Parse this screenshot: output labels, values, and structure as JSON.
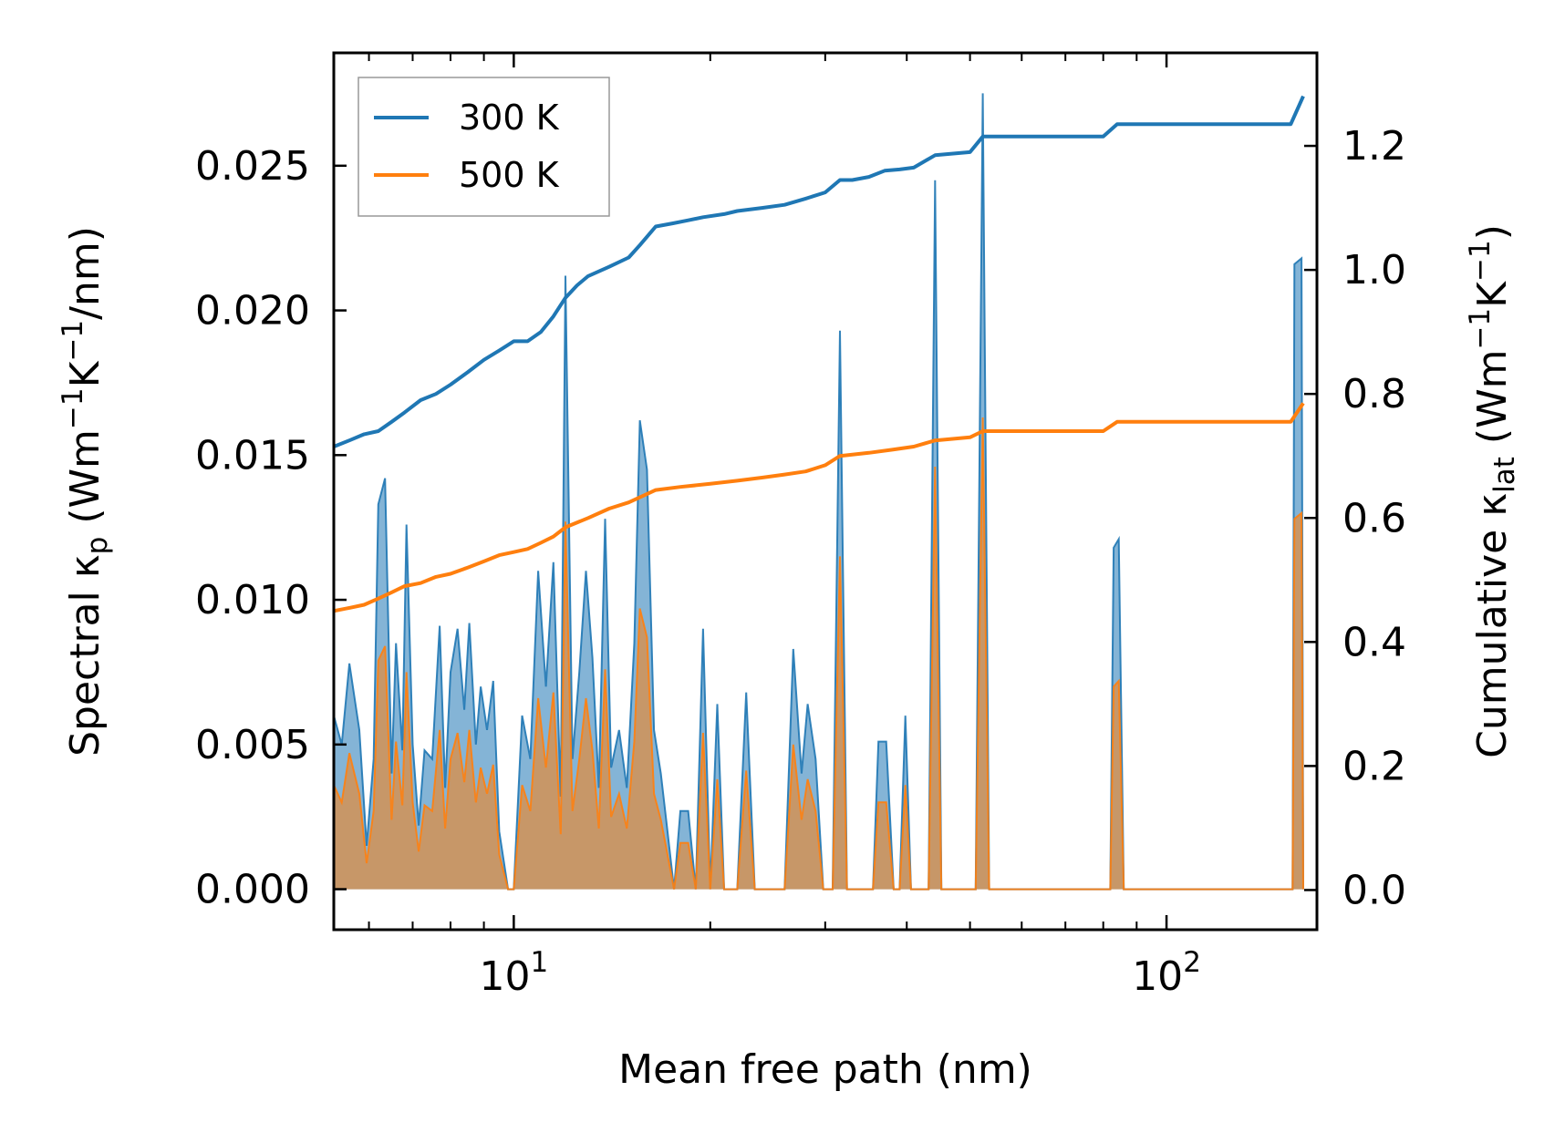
{
  "chart_data": {
    "type": "line",
    "x_scale": "log",
    "xlim": [
      5.3,
      170
    ],
    "xlabel": "Mean free path (nm)",
    "x_ticks": [
      {
        "value": 10,
        "base": "10",
        "exp": "1"
      },
      {
        "value": 100,
        "base": "10",
        "exp": "2"
      }
    ],
    "left_axis": {
      "label_main": "Spectral κ",
      "label_sub": "p",
      "label_unit_1": " (Wm",
      "label_unit_sup1": "−1",
      "label_unit_2": "K",
      "label_unit_sup2": "−1",
      "label_unit_3": "/nm)",
      "ylim": [
        -0.0014,
        0.0289
      ],
      "ticks": [
        {
          "value": 0.0,
          "label": "0.000"
        },
        {
          "value": 0.005,
          "label": "0.005"
        },
        {
          "value": 0.01,
          "label": "0.010"
        },
        {
          "value": 0.015,
          "label": "0.015"
        },
        {
          "value": 0.02,
          "label": "0.020"
        },
        {
          "value": 0.025,
          "label": "0.025"
        }
      ]
    },
    "right_axis": {
      "label_main": "Cumulative κ",
      "label_sub": "lat",
      "label_unit_1": " (Wm",
      "label_unit_sup1": "−1",
      "label_unit_2": "K",
      "label_unit_sup2": "−1",
      "label_unit_3": ")",
      "ylim": [
        -0.064,
        1.35
      ],
      "ticks": [
        {
          "value": 0.0,
          "label": "0.0"
        },
        {
          "value": 0.2,
          "label": "0.2"
        },
        {
          "value": 0.4,
          "label": "0.4"
        },
        {
          "value": 0.6,
          "label": "0.6"
        },
        {
          "value": 0.8,
          "label": "0.8"
        },
        {
          "value": 1.0,
          "label": "1.0"
        },
        {
          "value": 1.2,
          "label": "1.2"
        }
      ]
    },
    "legend": {
      "position": "top-left",
      "entries": [
        {
          "name": "300 K",
          "color": "#1f77b4"
        },
        {
          "name": "500 K",
          "color": "#ff7f0e"
        }
      ]
    },
    "spectral_series": [
      {
        "name": "300 K",
        "color": "#1f77b4",
        "points": [
          [
            5.3,
            0.0
          ],
          [
            5.3,
            0.006
          ],
          [
            5.45,
            0.005
          ],
          [
            5.6,
            0.0078
          ],
          [
            5.8,
            0.0055
          ],
          [
            5.95,
            0.0015
          ],
          [
            6.1,
            0.0045
          ],
          [
            6.2,
            0.0133
          ],
          [
            6.35,
            0.0142
          ],
          [
            6.5,
            0.004
          ],
          [
            6.6,
            0.0085
          ],
          [
            6.75,
            0.0048
          ],
          [
            6.85,
            0.0126
          ],
          [
            7.0,
            0.005
          ],
          [
            7.15,
            0.0022
          ],
          [
            7.3,
            0.0048
          ],
          [
            7.5,
            0.0045
          ],
          [
            7.7,
            0.0091
          ],
          [
            7.85,
            0.0035
          ],
          [
            8.0,
            0.0075
          ],
          [
            8.2,
            0.009
          ],
          [
            8.4,
            0.0062
          ],
          [
            8.55,
            0.0092
          ],
          [
            8.75,
            0.005
          ],
          [
            8.9,
            0.007
          ],
          [
            9.1,
            0.0055
          ],
          [
            9.3,
            0.0072
          ],
          [
            9.5,
            0.002
          ],
          [
            9.8,
            0.0
          ],
          [
            10.0,
            0.0
          ],
          [
            10.3,
            0.006
          ],
          [
            10.6,
            0.0045
          ],
          [
            10.9,
            0.011
          ],
          [
            11.2,
            0.007
          ],
          [
            11.5,
            0.0113
          ],
          [
            11.8,
            0.0032
          ],
          [
            12.0,
            0.0212
          ],
          [
            12.3,
            0.0045
          ],
          [
            12.6,
            0.0075
          ],
          [
            12.9,
            0.011
          ],
          [
            13.2,
            0.008
          ],
          [
            13.5,
            0.0035
          ],
          [
            13.8,
            0.0128
          ],
          [
            14.1,
            0.0042
          ],
          [
            14.5,
            0.0055
          ],
          [
            14.9,
            0.0035
          ],
          [
            15.3,
            0.0085
          ],
          [
            15.6,
            0.0162
          ],
          [
            16.0,
            0.0145
          ],
          [
            16.4,
            0.0055
          ],
          [
            16.8,
            0.004
          ],
          [
            17.2,
            0.002
          ],
          [
            17.6,
            0.0
          ],
          [
            18.0,
            0.0027
          ],
          [
            18.5,
            0.0027
          ],
          [
            19.0,
            0.0
          ],
          [
            19.5,
            0.009
          ],
          [
            20.0,
            0.0
          ],
          [
            20.5,
            0.0064
          ],
          [
            21.0,
            0.0
          ],
          [
            22.0,
            0.0
          ],
          [
            22.7,
            0.0068
          ],
          [
            23.4,
            0.0
          ],
          [
            26.0,
            0.0
          ],
          [
            26.8,
            0.0083
          ],
          [
            27.6,
            0.004
          ],
          [
            28.2,
            0.0064
          ],
          [
            29.0,
            0.0045
          ],
          [
            29.8,
            0.0
          ],
          [
            30.8,
            0.0
          ],
          [
            31.6,
            0.0193
          ],
          [
            32.4,
            0.0
          ],
          [
            35.5,
            0.0
          ],
          [
            36.2,
            0.0051
          ],
          [
            37.2,
            0.0051
          ],
          [
            38.2,
            0.0
          ],
          [
            39.0,
            0.0
          ],
          [
            39.8,
            0.006
          ],
          [
            40.6,
            0.0
          ],
          [
            42.2,
            0.0
          ],
          [
            43.2,
            0.0
          ],
          [
            44.2,
            0.0245
          ],
          [
            45.2,
            0.0
          ],
          [
            51.0,
            0.0
          ],
          [
            52.3,
            0.0275
          ],
          [
            53.5,
            0.0
          ],
          [
            82.0,
            0.0
          ],
          [
            83.0,
            0.0118
          ],
          [
            84.5,
            0.0121
          ],
          [
            86.0,
            0.0
          ],
          [
            156.0,
            0.0
          ],
          [
            157.0,
            0.0216
          ],
          [
            161.0,
            0.0218
          ],
          [
            162.0,
            0.0
          ]
        ]
      },
      {
        "name": "500 K",
        "color": "#ff7f0e",
        "points": [
          [
            5.3,
            0.0
          ],
          [
            5.3,
            0.0036
          ],
          [
            5.45,
            0.003
          ],
          [
            5.6,
            0.0047
          ],
          [
            5.8,
            0.0033
          ],
          [
            5.95,
            0.0009
          ],
          [
            6.1,
            0.0027
          ],
          [
            6.2,
            0.0079
          ],
          [
            6.35,
            0.0084
          ],
          [
            6.5,
            0.0024
          ],
          [
            6.6,
            0.0051
          ],
          [
            6.75,
            0.0029
          ],
          [
            6.85,
            0.0075
          ],
          [
            7.0,
            0.003
          ],
          [
            7.15,
            0.0013
          ],
          [
            7.3,
            0.0029
          ],
          [
            7.5,
            0.0027
          ],
          [
            7.7,
            0.0055
          ],
          [
            7.85,
            0.0021
          ],
          [
            8.0,
            0.0045
          ],
          [
            8.2,
            0.0054
          ],
          [
            8.4,
            0.0037
          ],
          [
            8.55,
            0.0055
          ],
          [
            8.75,
            0.003
          ],
          [
            8.9,
            0.0042
          ],
          [
            9.1,
            0.0033
          ],
          [
            9.3,
            0.0043
          ],
          [
            9.5,
            0.0012
          ],
          [
            9.8,
            0.0
          ],
          [
            10.0,
            0.0
          ],
          [
            10.3,
            0.0036
          ],
          [
            10.6,
            0.0027
          ],
          [
            10.9,
            0.0066
          ],
          [
            11.2,
            0.0042
          ],
          [
            11.5,
            0.0068
          ],
          [
            11.8,
            0.0019
          ],
          [
            12.0,
            0.0127
          ],
          [
            12.3,
            0.0027
          ],
          [
            12.6,
            0.0045
          ],
          [
            12.9,
            0.0066
          ],
          [
            13.2,
            0.0048
          ],
          [
            13.5,
            0.0021
          ],
          [
            13.8,
            0.0076
          ],
          [
            14.1,
            0.0025
          ],
          [
            14.5,
            0.0033
          ],
          [
            14.9,
            0.0021
          ],
          [
            15.3,
            0.0051
          ],
          [
            15.6,
            0.0097
          ],
          [
            16.0,
            0.0087
          ],
          [
            16.4,
            0.0033
          ],
          [
            16.8,
            0.0024
          ],
          [
            17.2,
            0.0012
          ],
          [
            17.6,
            0.0
          ],
          [
            18.0,
            0.0016
          ],
          [
            18.5,
            0.0016
          ],
          [
            19.0,
            0.0
          ],
          [
            19.5,
            0.0054
          ],
          [
            20.0,
            0.0
          ],
          [
            20.5,
            0.0038
          ],
          [
            21.0,
            0.0
          ],
          [
            22.0,
            0.0
          ],
          [
            22.7,
            0.0041
          ],
          [
            23.4,
            0.0
          ],
          [
            26.0,
            0.0
          ],
          [
            26.8,
            0.005
          ],
          [
            27.6,
            0.0024
          ],
          [
            28.2,
            0.0038
          ],
          [
            29.0,
            0.0027
          ],
          [
            29.8,
            0.0
          ],
          [
            30.8,
            0.0
          ],
          [
            31.6,
            0.0115
          ],
          [
            32.4,
            0.0
          ],
          [
            35.5,
            0.0
          ],
          [
            36.2,
            0.003
          ],
          [
            37.2,
            0.003
          ],
          [
            38.2,
            0.0
          ],
          [
            39.0,
            0.0
          ],
          [
            39.8,
            0.0036
          ],
          [
            40.6,
            0.0
          ],
          [
            42.2,
            0.0
          ],
          [
            43.2,
            0.0
          ],
          [
            44.2,
            0.0146
          ],
          [
            45.2,
            0.0
          ],
          [
            51.0,
            0.0
          ],
          [
            52.3,
            0.0163
          ],
          [
            53.5,
            0.0
          ],
          [
            82.0,
            0.0
          ],
          [
            83.0,
            0.007
          ],
          [
            84.5,
            0.0072
          ],
          [
            86.0,
            0.0
          ],
          [
            156.0,
            0.0
          ],
          [
            157.0,
            0.0128
          ],
          [
            161.0,
            0.013
          ],
          [
            162.0,
            0.0
          ]
        ]
      }
    ],
    "cumulative_series": [
      {
        "name": "300 K",
        "color": "#1f77b4",
        "points": [
          [
            5.3,
            0.715
          ],
          [
            5.6,
            0.725
          ],
          [
            5.9,
            0.735
          ],
          [
            6.2,
            0.74
          ],
          [
            6.5,
            0.755
          ],
          [
            6.8,
            0.77
          ],
          [
            7.2,
            0.79
          ],
          [
            7.6,
            0.8
          ],
          [
            8.0,
            0.815
          ],
          [
            8.5,
            0.835
          ],
          [
            9.0,
            0.855
          ],
          [
            9.5,
            0.87
          ],
          [
            10.0,
            0.885
          ],
          [
            10.5,
            0.885
          ],
          [
            11.0,
            0.9
          ],
          [
            11.5,
            0.925
          ],
          [
            12.0,
            0.955
          ],
          [
            12.5,
            0.975
          ],
          [
            13.0,
            0.99
          ],
          [
            14.0,
            1.005
          ],
          [
            15.0,
            1.02
          ],
          [
            15.6,
            1.04
          ],
          [
            16.5,
            1.07
          ],
          [
            17.5,
            1.075
          ],
          [
            18.5,
            1.08
          ],
          [
            19.5,
            1.085
          ],
          [
            21.0,
            1.09
          ],
          [
            22.0,
            1.095
          ],
          [
            24.0,
            1.1
          ],
          [
            26.0,
            1.105
          ],
          [
            28.0,
            1.115
          ],
          [
            30.0,
            1.125
          ],
          [
            31.6,
            1.145
          ],
          [
            33.0,
            1.145
          ],
          [
            35.0,
            1.15
          ],
          [
            37.0,
            1.16
          ],
          [
            39.0,
            1.162
          ],
          [
            41.0,
            1.165
          ],
          [
            44.2,
            1.185
          ],
          [
            50.0,
            1.19
          ],
          [
            52.3,
            1.215
          ],
          [
            80.0,
            1.215
          ],
          [
            84.0,
            1.235
          ],
          [
            100.0,
            1.235
          ],
          [
            155.0,
            1.235
          ],
          [
            162.0,
            1.28
          ]
        ]
      },
      {
        "name": "500 K",
        "color": "#ff7f0e",
        "points": [
          [
            5.3,
            0.45
          ],
          [
            5.6,
            0.455
          ],
          [
            5.9,
            0.46
          ],
          [
            6.2,
            0.47
          ],
          [
            6.5,
            0.48
          ],
          [
            6.8,
            0.49
          ],
          [
            7.2,
            0.495
          ],
          [
            7.6,
            0.505
          ],
          [
            8.0,
            0.51
          ],
          [
            8.5,
            0.52
          ],
          [
            9.0,
            0.53
          ],
          [
            9.5,
            0.54
          ],
          [
            10.0,
            0.545
          ],
          [
            10.5,
            0.55
          ],
          [
            11.0,
            0.56
          ],
          [
            11.5,
            0.57
          ],
          [
            12.0,
            0.585
          ],
          [
            13.0,
            0.6
          ],
          [
            14.0,
            0.615
          ],
          [
            15.0,
            0.625
          ],
          [
            16.5,
            0.645
          ],
          [
            18.0,
            0.65
          ],
          [
            20.0,
            0.655
          ],
          [
            22.0,
            0.66
          ],
          [
            24.0,
            0.665
          ],
          [
            26.0,
            0.67
          ],
          [
            28.0,
            0.675
          ],
          [
            30.0,
            0.685
          ],
          [
            31.6,
            0.7
          ],
          [
            35.0,
            0.705
          ],
          [
            38.0,
            0.71
          ],
          [
            41.0,
            0.715
          ],
          [
            44.2,
            0.725
          ],
          [
            50.0,
            0.73
          ],
          [
            52.3,
            0.74
          ],
          [
            80.0,
            0.74
          ],
          [
            84.0,
            0.755
          ],
          [
            100.0,
            0.755
          ],
          [
            155.0,
            0.755
          ],
          [
            162.0,
            0.785
          ]
        ]
      }
    ]
  }
}
